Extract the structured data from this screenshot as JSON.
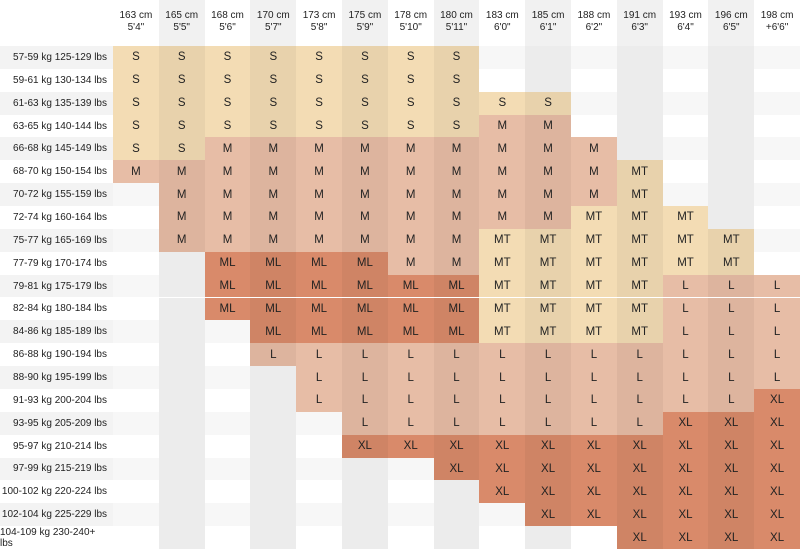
{
  "header": {
    "columns": [
      {
        "cm": "163 cm",
        "ft": "5'4\""
      },
      {
        "cm": "165 cm",
        "ft": "5'5\""
      },
      {
        "cm": "168 cm",
        "ft": "5'6\""
      },
      {
        "cm": "170 cm",
        "ft": "5'7\""
      },
      {
        "cm": "173 cm",
        "ft": "5'8\""
      },
      {
        "cm": "175 cm",
        "ft": "5'9\""
      },
      {
        "cm": "178 cm",
        "ft": "5'10\""
      },
      {
        "cm": "180 cm",
        "ft": "5'11\""
      },
      {
        "cm": "183 cm",
        "ft": "6'0\""
      },
      {
        "cm": "185 cm",
        "ft": "6'1\""
      },
      {
        "cm": "188 cm",
        "ft": "6'2\""
      },
      {
        "cm": "191 cm",
        "ft": "6'3\""
      },
      {
        "cm": "193 cm",
        "ft": "6'4\""
      },
      {
        "cm": "196 cm",
        "ft": "6'5\""
      },
      {
        "cm": "198 cm",
        "ft": "+6'6\""
      }
    ]
  },
  "colors": {
    "S": "#f3dcb4",
    "MT": "#f3dcb4",
    "M": "#e7bda6",
    "L": "#e7bda6",
    "ML": "#d98a6a",
    "XL": "#d98a6a"
  },
  "rows": [
    {
      "label": "57-59 kg 125-129 lbs",
      "cells": [
        "S",
        "S",
        "S",
        "S",
        "S",
        "S",
        "S",
        "S",
        null,
        null,
        null,
        null,
        null,
        null,
        null
      ]
    },
    {
      "label": "59-61 kg 130-134 lbs",
      "cells": [
        "S",
        "S",
        "S",
        "S",
        "S",
        "S",
        "S",
        "S",
        null,
        null,
        null,
        null,
        null,
        null,
        null
      ]
    },
    {
      "label": "61-63 kg 135-139 lbs",
      "cells": [
        "S",
        "S",
        "S",
        "S",
        "S",
        "S",
        "S",
        "S",
        "S",
        "S",
        null,
        null,
        null,
        null,
        null
      ]
    },
    {
      "label": "63-65 kg 140-144 lbs",
      "cells": [
        "S",
        "S",
        "S",
        "S",
        "S",
        "S",
        "S",
        "S",
        "M",
        "M",
        null,
        null,
        null,
        null,
        null
      ]
    },
    {
      "label": "66-68 kg 145-149 lbs",
      "cells": [
        "S",
        "S",
        "M",
        "M",
        "M",
        "M",
        "M",
        "M",
        "M",
        "M",
        "M",
        null,
        null,
        null,
        null
      ]
    },
    {
      "label": "68-70 kg 150-154 lbs",
      "cells": [
        "M",
        "M",
        "M",
        "M",
        "M",
        "M",
        "M",
        "M",
        "M",
        "M",
        "M",
        "MT",
        null,
        null,
        null
      ]
    },
    {
      "label": "70-72 kg 155-159 lbs",
      "cells": [
        null,
        "M",
        "M",
        "M",
        "M",
        "M",
        "M",
        "M",
        "M",
        "M",
        "M",
        "MT",
        null,
        null,
        null
      ]
    },
    {
      "label": "72-74 kg 160-164 lbs",
      "cells": [
        null,
        "M",
        "M",
        "M",
        "M",
        "M",
        "M",
        "M",
        "M",
        "M",
        "MT",
        "MT",
        "MT",
        null,
        null
      ]
    },
    {
      "label": "75-77 kg 165-169 lbs",
      "cells": [
        null,
        "M",
        "M",
        "M",
        "M",
        "M",
        "M",
        "M",
        "MT",
        "MT",
        "MT",
        "MT",
        "MT",
        "MT",
        null
      ]
    },
    {
      "label": "77-79 kg 170-174 lbs",
      "cells": [
        null,
        null,
        "ML",
        "ML",
        "ML",
        "ML",
        "M",
        "M",
        "MT",
        "MT",
        "MT",
        "MT",
        "MT",
        "MT",
        null
      ]
    },
    {
      "label": "79-81 kg 175-179 lbs",
      "cells": [
        null,
        null,
        "ML",
        "ML",
        "ML",
        "ML",
        "ML",
        "ML",
        "MT",
        "MT",
        "MT",
        "MT",
        "L",
        "L",
        "L"
      ]
    },
    {
      "label": "82-84 kg 180-184 lbs",
      "cells": [
        null,
        null,
        "ML",
        "ML",
        "ML",
        "ML",
        "ML",
        "ML",
        "MT",
        "MT",
        "MT",
        "MT",
        "L",
        "L",
        "L"
      ]
    },
    {
      "label": "84-86 kg 185-189 lbs",
      "cells": [
        null,
        null,
        null,
        "ML",
        "ML",
        "ML",
        "ML",
        "ML",
        "MT",
        "MT",
        "MT",
        "MT",
        "L",
        "L",
        "L"
      ]
    },
    {
      "label": "86-88 kg 190-194 lbs",
      "cells": [
        null,
        null,
        null,
        "L",
        "L",
        "L",
        "L",
        "L",
        "L",
        "L",
        "L",
        "L",
        "L",
        "L",
        "L"
      ]
    },
    {
      "label": "88-90 kg 195-199 lbs",
      "cells": [
        null,
        null,
        null,
        null,
        "L",
        "L",
        "L",
        "L",
        "L",
        "L",
        "L",
        "L",
        "L",
        "L",
        "L"
      ]
    },
    {
      "label": "91-93 kg 200-204 lbs",
      "cells": [
        null,
        null,
        null,
        null,
        "L",
        "L",
        "L",
        "L",
        "L",
        "L",
        "L",
        "L",
        "L",
        "L",
        "XL"
      ]
    },
    {
      "label": "93-95 kg 205-209 lbs",
      "cells": [
        null,
        null,
        null,
        null,
        null,
        "L",
        "L",
        "L",
        "L",
        "L",
        "L",
        "L",
        "XL",
        "XL",
        "XL"
      ]
    },
    {
      "label": "95-97 kg 210-214 lbs",
      "cells": [
        null,
        null,
        null,
        null,
        null,
        "XL",
        "XL",
        "XL",
        "XL",
        "XL",
        "XL",
        "XL",
        "XL",
        "XL",
        "XL"
      ]
    },
    {
      "label": "97-99 kg 215-219 lbs",
      "cells": [
        null,
        null,
        null,
        null,
        null,
        null,
        null,
        "XL",
        "XL",
        "XL",
        "XL",
        "XL",
        "XL",
        "XL",
        "XL"
      ]
    },
    {
      "label": "100-102 kg 220-224 lbs",
      "cells": [
        null,
        null,
        null,
        null,
        null,
        null,
        null,
        null,
        "XL",
        "XL",
        "XL",
        "XL",
        "XL",
        "XL",
        "XL"
      ]
    },
    {
      "label": "102-104 kg 225-229 lbs",
      "cells": [
        null,
        null,
        null,
        null,
        null,
        null,
        null,
        null,
        null,
        "XL",
        "XL",
        "XL",
        "XL",
        "XL",
        "XL"
      ]
    },
    {
      "label": "104-109 kg 230-240+ lbs",
      "cells": [
        null,
        null,
        null,
        null,
        null,
        null,
        null,
        null,
        null,
        null,
        null,
        "XL",
        "XL",
        "XL",
        "XL"
      ]
    }
  ]
}
